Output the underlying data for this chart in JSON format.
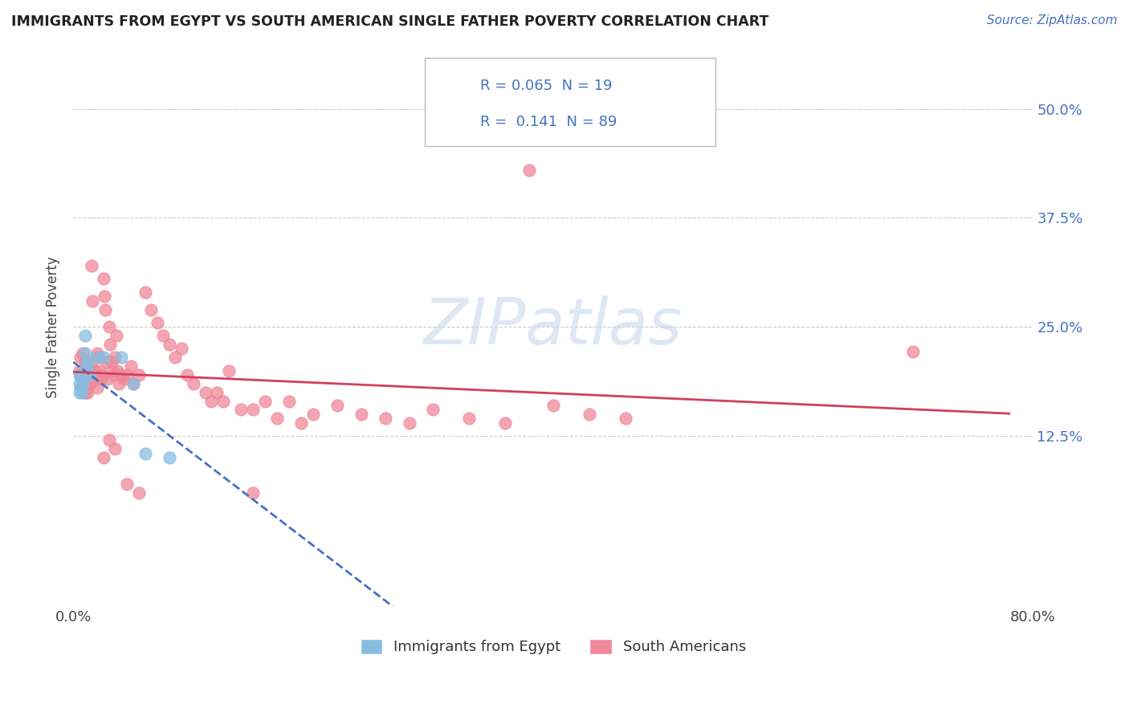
{
  "title": "IMMIGRANTS FROM EGYPT VS SOUTH AMERICAN SINGLE FATHER POVERTY CORRELATION CHART",
  "source": "Source: ZipAtlas.com",
  "ylabel": "Single Father Poverty",
  "y_ticks": [
    "12.5%",
    "25.0%",
    "37.5%",
    "50.0%"
  ],
  "y_tick_vals": [
    0.125,
    0.25,
    0.375,
    0.5
  ],
  "xlim": [
    0.0,
    0.8
  ],
  "ylim": [
    -0.07,
    0.57
  ],
  "legend_label1": "Immigrants from Egypt",
  "legend_label2": "South Americans",
  "egypt_scatter_color": "#89bde0",
  "south_scatter_color": "#f08898",
  "egypt_line_color": "#4472c4",
  "south_line_color": "#d04060",
  "watermark": "ZIPatlas",
  "egypt_R": 0.065,
  "egypt_N": 19,
  "south_R": 0.141,
  "south_N": 89
}
